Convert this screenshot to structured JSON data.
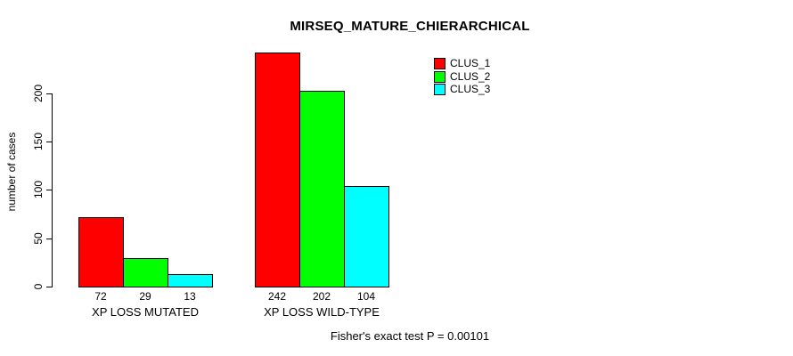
{
  "chart_data": {
    "type": "bar",
    "title": "MIRSEQ_MATURE_CHIERARCHICAL",
    "categories": [
      "XP LOSS MUTATED",
      "XP LOSS WILD-TYPE"
    ],
    "series": [
      {
        "name": "CLUS_1",
        "color": "#ff0000",
        "values": [
          72,
          242
        ]
      },
      {
        "name": "CLUS_2",
        "color": "#00ff00",
        "values": [
          29,
          202
        ]
      },
      {
        "name": "CLUS_3",
        "color": "#00ffff",
        "values": [
          13,
          104
        ]
      }
    ],
    "bar_value_labels": [
      [
        "72",
        "29",
        "13"
      ],
      [
        "242",
        "202",
        "104"
      ]
    ],
    "xlabel": "",
    "ylabel": "number of cases",
    "yticks": [
      0,
      50,
      100,
      150,
      200
    ],
    "ylim": [
      0,
      245
    ],
    "grid": false,
    "show_bar_values": true,
    "bar_border_color": "#000000",
    "background_color": "#ffffff",
    "text_color": "#000000",
    "legend": {
      "position": "top-right",
      "entries": [
        {
          "label": "CLUS_1",
          "color": "#ff0000"
        },
        {
          "label": "CLUS_2",
          "color": "#00ff00"
        },
        {
          "label": "CLUS_3",
          "color": "#00ffff"
        }
      ]
    },
    "annotation": "Fisher's exact test P = 0.00101"
  }
}
